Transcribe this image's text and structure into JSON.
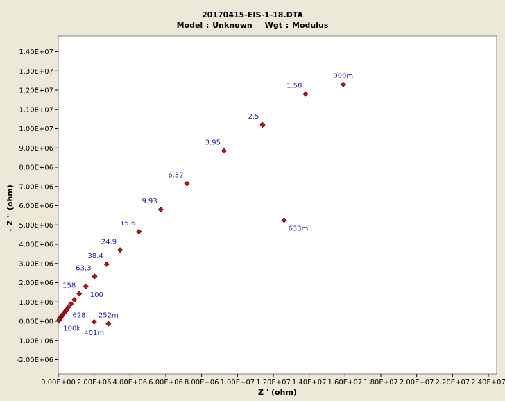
{
  "chart_data": {
    "type": "scatter",
    "title": "20170415-EIS-1-18.DTA",
    "subtitle_model": "Model : Unknown",
    "subtitle_weight": "Wgt : Modulus",
    "xlabel": "Z ' (ohm)",
    "ylabel": "- Z '' (ohm)",
    "xlim": [
      0,
      24000000
    ],
    "ylim": [
      -2500000,
      14800000
    ],
    "grid": false,
    "x_ticks": [
      0,
      2000000,
      4000000,
      6000000,
      8000000,
      10000000,
      12000000,
      14000000,
      16000000,
      18000000,
      20000000,
      22000000,
      24000000
    ],
    "x_tick_labels": [
      "0.00E+00",
      "2.00E+06",
      "4.00E+06",
      "6.00E+06",
      "8.00E+06",
      "1.00E+07",
      "1.20E+07",
      "1.40E+07",
      "1.60E+07",
      "1.80E+07",
      "2.00E+07",
      "2.20E+07",
      "2.40E+07"
    ],
    "y_ticks": [
      -2000000,
      -1000000,
      0,
      1000000,
      2000000,
      3000000,
      4000000,
      5000000,
      6000000,
      7000000,
      8000000,
      9000000,
      10000000,
      11000000,
      12000000,
      13000000,
      14000000
    ],
    "y_tick_labels": [
      "-2.00E+06",
      "-1.00E+06",
      "0.00E+00",
      "1.00E+06",
      "2.00E+06",
      "3.00E+06",
      "4.00E+06",
      "5.00E+06",
      "6.00E+06",
      "7.00E+06",
      "8.00E+06",
      "9.00E+06",
      "1.00E+07",
      "1.10E+07",
      "1.20E+07",
      "1.30E+07",
      "1.40E+07"
    ],
    "series": [
      {
        "marker_color": "#c0141b",
        "x": [
          15900000,
          13800000,
          11400000,
          9250000,
          7180000,
          5720000,
          4500000,
          3450000,
          2700000,
          2030000,
          1540000,
          1170000,
          900000,
          710000,
          560000,
          440000,
          340000,
          260000,
          200000,
          150000,
          110000,
          75000,
          50000,
          12600000,
          2800000,
          2000000
        ],
        "y": [
          12300000,
          11800000,
          10200000,
          8850000,
          7150000,
          5800000,
          4650000,
          3700000,
          2960000,
          2330000,
          1810000,
          1430000,
          1110000,
          900000,
          730000,
          570000,
          450000,
          360000,
          280000,
          210000,
          150000,
          100000,
          50000,
          5250000,
          -130000,
          -30000
        ]
      }
    ],
    "annotations": [
      {
        "text": "999m",
        "x": 15900000,
        "y": 12300000,
        "pos": "above"
      },
      {
        "text": "1.58",
        "x": 13800000,
        "y": 11800000,
        "pos": "above-left"
      },
      {
        "text": "2.5",
        "x": 11400000,
        "y": 10200000,
        "pos": "above-left"
      },
      {
        "text": "3.95",
        "x": 9250000,
        "y": 8850000,
        "pos": "above-left"
      },
      {
        "text": "6.32",
        "x": 7180000,
        "y": 7150000,
        "pos": "above-left"
      },
      {
        "text": "9.93",
        "x": 5720000,
        "y": 5800000,
        "pos": "above-left"
      },
      {
        "text": "15.6",
        "x": 4500000,
        "y": 4650000,
        "pos": "above-left"
      },
      {
        "text": "24.9",
        "x": 3450000,
        "y": 3700000,
        "pos": "above-left"
      },
      {
        "text": "38.4",
        "x": 2700000,
        "y": 2960000,
        "pos": "above-left"
      },
      {
        "text": "63.3",
        "x": 2030000,
        "y": 2330000,
        "pos": "above-left"
      },
      {
        "text": "158",
        "x": 1170000,
        "y": 1430000,
        "pos": "above-left"
      },
      {
        "text": "100",
        "x": 1540000,
        "y": 1810000,
        "pos": "below-right"
      },
      {
        "text": "628",
        "x": 560000,
        "y": 730000,
        "pos": "below-right"
      },
      {
        "text": "100k",
        "x": 50000,
        "y": 50000,
        "pos": "below-right"
      },
      {
        "text": "633m",
        "x": 12600000,
        "y": 5250000,
        "pos": "below-right"
      },
      {
        "text": "252m",
        "x": 2800000,
        "y": -130000,
        "pos": "above"
      },
      {
        "text": "401m",
        "x": 2000000,
        "y": -30000,
        "pos": "below"
      }
    ]
  }
}
